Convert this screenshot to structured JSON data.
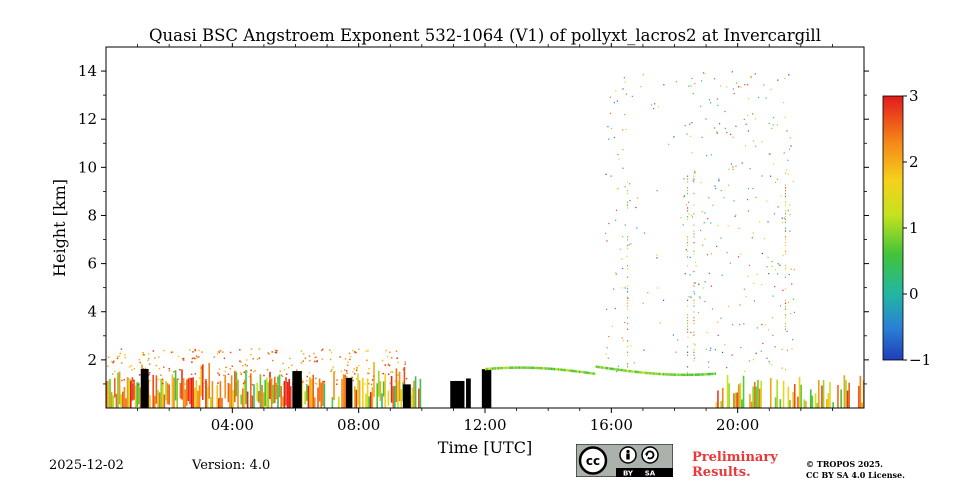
{
  "chart_data": {
    "type": "heatmap",
    "title": "Quasi BSC Angstroem Exponent 532-1064 (V1) of pollyxt_lacros2 at Invercargill",
    "xlabel": "Time [UTC]",
    "ylabel": "Height [km]",
    "xlim_hours": [
      0,
      24
    ],
    "ylim_km": [
      0,
      15
    ],
    "x_ticks": [
      {
        "value": 4,
        "label": "04:00"
      },
      {
        "value": 8,
        "label": "08:00"
      },
      {
        "value": 12,
        "label": "12:00"
      },
      {
        "value": 16,
        "label": "16:00"
      },
      {
        "value": 20,
        "label": "20:00"
      }
    ],
    "y_ticks": [
      {
        "value": 2,
        "label": "2"
      },
      {
        "value": 4,
        "label": "4"
      },
      {
        "value": 6,
        "label": "6"
      },
      {
        "value": 8,
        "label": "8"
      },
      {
        "value": 10,
        "label": "10"
      },
      {
        "value": 12,
        "label": "12"
      },
      {
        "value": 14,
        "label": "14"
      }
    ],
    "colorbar": {
      "range": [
        -1,
        3
      ],
      "ticks": [
        {
          "value": -1,
          "label": "−1"
        },
        {
          "value": 0,
          "label": "0"
        },
        {
          "value": 1,
          "label": "1"
        },
        {
          "value": 2,
          "label": "2"
        },
        {
          "value": 3,
          "label": "3"
        }
      ]
    }
  },
  "footer": {
    "date": "2025-12-02",
    "version": "Version: 4.0",
    "preliminary_line1": "Preliminary",
    "preliminary_line2": "Results.",
    "copyright_line1": "© TROPOS 2025.",
    "copyright_line2": "CC BY SA 4.0 License.",
    "license_badge": {
      "by": "BY",
      "sa": "SA"
    }
  }
}
